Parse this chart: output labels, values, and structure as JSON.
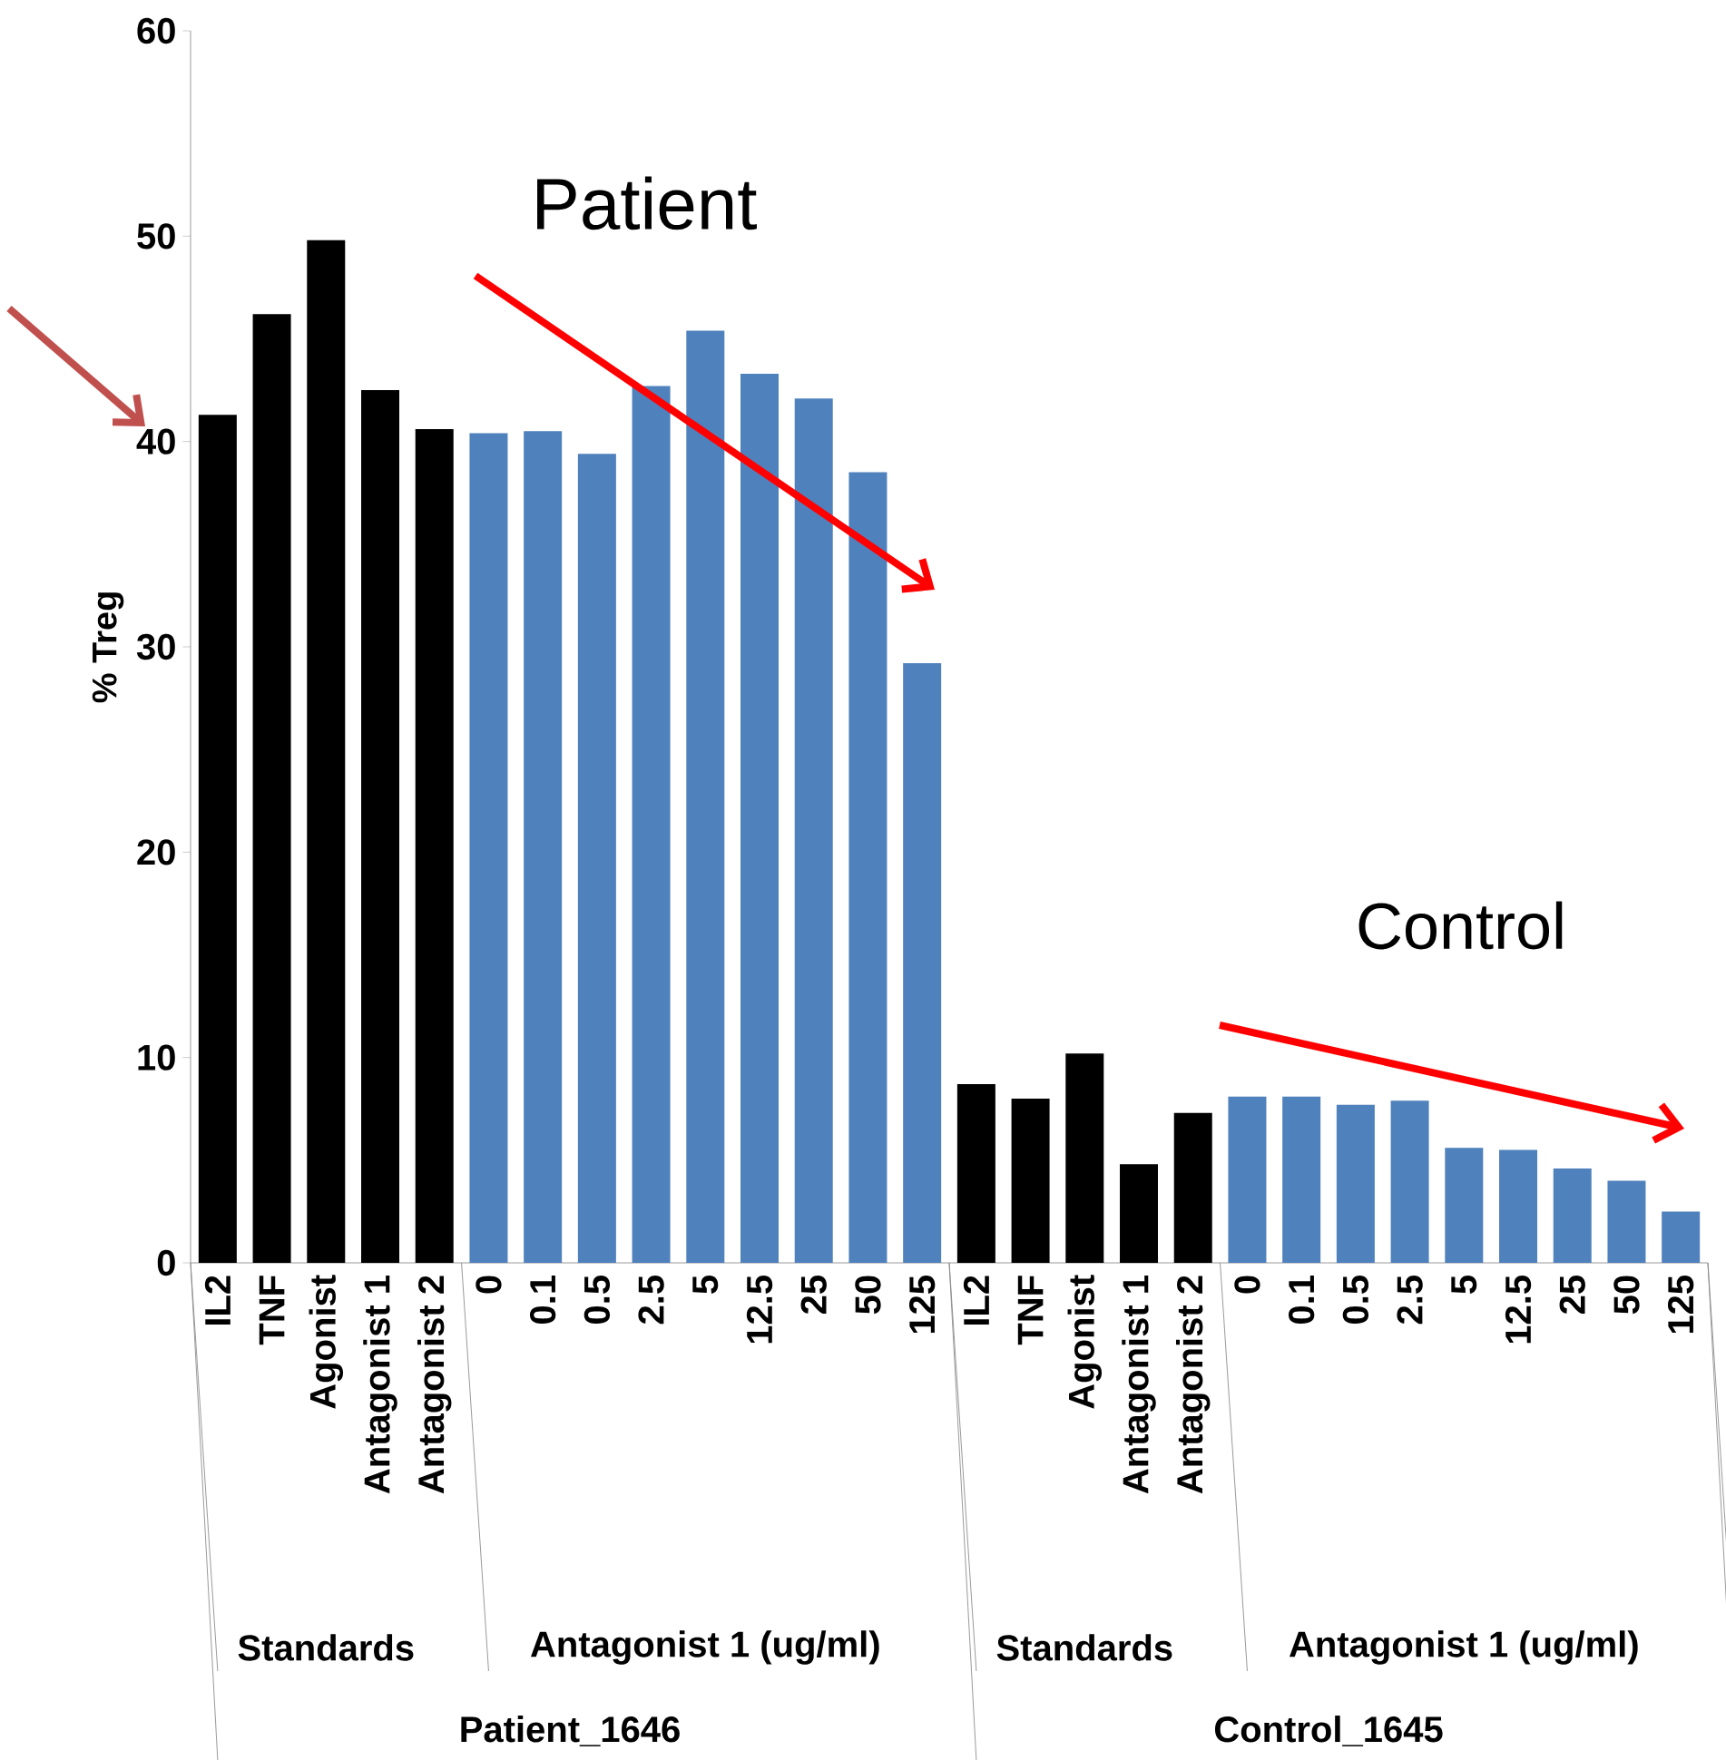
{
  "chart_data": {
    "type": "bar",
    "ylabel": "% Treg",
    "ylim": [
      0,
      60
    ],
    "yticks": [
      0,
      10,
      20,
      30,
      40,
      50,
      60
    ],
    "categories": [
      "IL2",
      "TNF",
      "Agonist",
      "Antagonist 1",
      "Antagonist 2",
      "0",
      "0.1",
      "0.5",
      "2.5",
      "5",
      "12.5",
      "25",
      "50",
      "125",
      "IL2",
      "TNF",
      "Agonist",
      "Antagonist 1",
      "Antagonist 2",
      "0",
      "0.1",
      "0.5",
      "2.5",
      "5",
      "12.5",
      "25",
      "50",
      "125"
    ],
    "values": [
      41.3,
      46.2,
      49.8,
      42.5,
      40.6,
      40.4,
      40.5,
      39.4,
      42.7,
      45.4,
      43.3,
      42.1,
      38.5,
      29.2,
      8.7,
      8.0,
      10.2,
      4.8,
      7.3,
      8.1,
      8.1,
      7.7,
      7.9,
      5.6,
      5.5,
      4.6,
      4.0,
      2.5
    ],
    "colors": [
      "#000000",
      "#000000",
      "#000000",
      "#000000",
      "#000000",
      "#4f81bd",
      "#4f81bd",
      "#4f81bd",
      "#4f81bd",
      "#4f81bd",
      "#4f81bd",
      "#4f81bd",
      "#4f81bd",
      "#4f81bd",
      "#000000",
      "#000000",
      "#000000",
      "#000000",
      "#000000",
      "#4f81bd",
      "#4f81bd",
      "#4f81bd",
      "#4f81bd",
      "#4f81bd",
      "#4f81bd",
      "#4f81bd",
      "#4f81bd",
      "#4f81bd"
    ],
    "annotations": [
      "Patient",
      "Control",
      "Standards",
      "Antagonist 1 (ug/ml)",
      "Standards",
      "Antagonist 1 (ug/ml)",
      "Patient_1646",
      "Control_1645"
    ]
  }
}
